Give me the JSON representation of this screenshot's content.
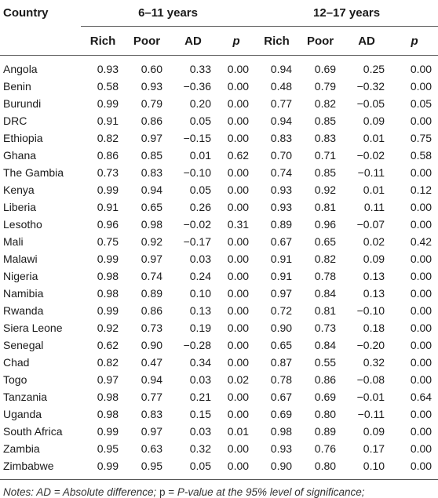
{
  "table": {
    "header_country": "Country",
    "group1": "6–11 years",
    "group2": "12–17 years",
    "subheaders": [
      "Rich",
      "Poor",
      "AD",
      "p",
      "Rich",
      "Poor",
      "AD",
      "p"
    ],
    "rows": [
      {
        "country": "Angola",
        "v": [
          "0.93",
          "0.60",
          "0.33",
          "0.00",
          "0.94",
          "0.69",
          "0.25",
          "0.00"
        ]
      },
      {
        "country": "Benin",
        "v": [
          "0.58",
          "0.93",
          "−0.36",
          "0.00",
          "0.48",
          "0.79",
          "−0.32",
          "0.00"
        ]
      },
      {
        "country": "Burundi",
        "v": [
          "0.99",
          "0.79",
          "0.20",
          "0.00",
          "0.77",
          "0.82",
          "−0.05",
          "0.05"
        ]
      },
      {
        "country": "DRC",
        "v": [
          "0.91",
          "0.86",
          "0.05",
          "0.00",
          "0.94",
          "0.85",
          "0.09",
          "0.00"
        ]
      },
      {
        "country": "Ethiopia",
        "v": [
          "0.82",
          "0.97",
          "−0.15",
          "0.00",
          "0.83",
          "0.83",
          "0.01",
          "0.75"
        ]
      },
      {
        "country": "Ghana",
        "v": [
          "0.86",
          "0.85",
          "0.01",
          "0.62",
          "0.70",
          "0.71",
          "−0.02",
          "0.58"
        ]
      },
      {
        "country": "The Gambia",
        "v": [
          "0.73",
          "0.83",
          "−0.10",
          "0.00",
          "0.74",
          "0.85",
          "−0.11",
          "0.00"
        ]
      },
      {
        "country": "Kenya",
        "v": [
          "0.99",
          "0.94",
          "0.05",
          "0.00",
          "0.93",
          "0.92",
          "0.01",
          "0.12"
        ]
      },
      {
        "country": "Liberia",
        "v": [
          "0.91",
          "0.65",
          "0.26",
          "0.00",
          "0.93",
          "0.81",
          "0.11",
          "0.00"
        ]
      },
      {
        "country": "Lesotho",
        "v": [
          "0.96",
          "0.98",
          "−0.02",
          "0.31",
          "0.89",
          "0.96",
          "−0.07",
          "0.00"
        ]
      },
      {
        "country": "Mali",
        "v": [
          "0.75",
          "0.92",
          "−0.17",
          "0.00",
          "0.67",
          "0.65",
          "0.02",
          "0.42"
        ]
      },
      {
        "country": "Malawi",
        "v": [
          "0.99",
          "0.97",
          "0.03",
          "0.00",
          "0.91",
          "0.82",
          "0.09",
          "0.00"
        ]
      },
      {
        "country": "Nigeria",
        "v": [
          "0.98",
          "0.74",
          "0.24",
          "0.00",
          "0.91",
          "0.78",
          "0.13",
          "0.00"
        ]
      },
      {
        "country": "Namibia",
        "v": [
          "0.98",
          "0.89",
          "0.10",
          "0.00",
          "0.97",
          "0.84",
          "0.13",
          "0.00"
        ]
      },
      {
        "country": "Rwanda",
        "v": [
          "0.99",
          "0.86",
          "0.13",
          "0.00",
          "0.72",
          "0.81",
          "−0.10",
          "0.00"
        ]
      },
      {
        "country": "Siera Leone",
        "v": [
          "0.92",
          "0.73",
          "0.19",
          "0.00",
          "0.90",
          "0.73",
          "0.18",
          "0.00"
        ]
      },
      {
        "country": "Senegal",
        "v": [
          "0.62",
          "0.90",
          "−0.28",
          "0.00",
          "0.65",
          "0.84",
          "−0.20",
          "0.00"
        ]
      },
      {
        "country": "Chad",
        "v": [
          "0.82",
          "0.47",
          "0.34",
          "0.00",
          "0.87",
          "0.55",
          "0.32",
          "0.00"
        ]
      },
      {
        "country": "Togo",
        "v": [
          "0.97",
          "0.94",
          "0.03",
          "0.02",
          "0.78",
          "0.86",
          "−0.08",
          "0.00"
        ]
      },
      {
        "country": "Tanzania",
        "v": [
          "0.98",
          "0.77",
          "0.21",
          "0.00",
          "0.67",
          "0.69",
          "−0.01",
          "0.64"
        ]
      },
      {
        "country": "Uganda",
        "v": [
          "0.98",
          "0.83",
          "0.15",
          "0.00",
          "0.69",
          "0.80",
          "−0.11",
          "0.00"
        ]
      },
      {
        "country": "South Africa",
        "v": [
          "0.99",
          "0.97",
          "0.03",
          "0.01",
          "0.98",
          "0.89",
          "0.09",
          "0.00"
        ]
      },
      {
        "country": "Zambia",
        "v": [
          "0.95",
          "0.63",
          "0.32",
          "0.00",
          "0.93",
          "0.76",
          "0.17",
          "0.00"
        ]
      },
      {
        "country": "Zimbabwe",
        "v": [
          "0.99",
          "0.95",
          "0.05",
          "0.00",
          "0.90",
          "0.80",
          "0.10",
          "0.00"
        ]
      }
    ]
  },
  "notes": {
    "part1": "Notes: AD = Absolute difference; ",
    "part2": "p = ",
    "part3": "P-value at the 95% level of significance;"
  }
}
